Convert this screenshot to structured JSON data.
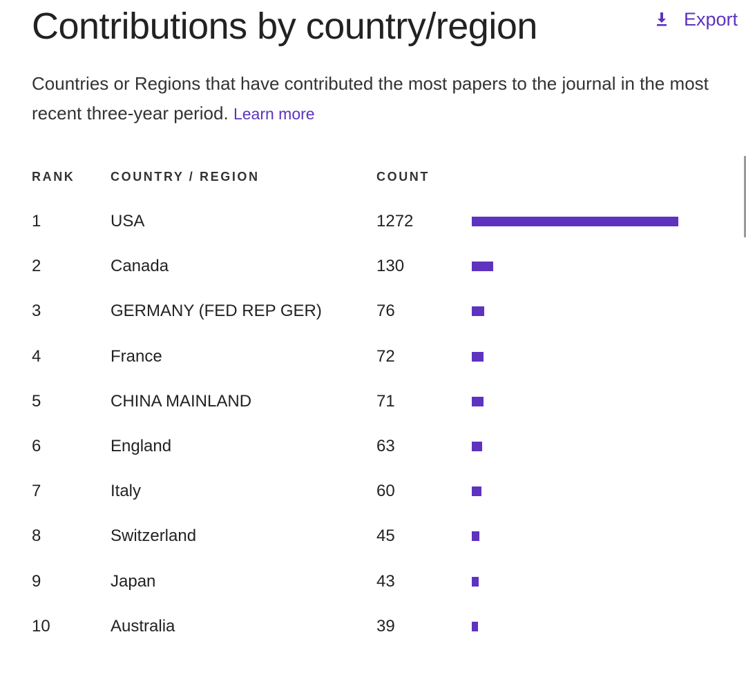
{
  "header": {
    "title": "Contributions by country/region",
    "export_label": "Export",
    "export_icon": "download-icon"
  },
  "description": {
    "text": "Countries or Regions that have contributed the most papers to the journal in the most recent three-year period.",
    "link_label": "Learn more"
  },
  "table": {
    "columns": [
      "RANK",
      "COUNTRY / REGION",
      "COUNT"
    ],
    "rows": [
      {
        "rank": "1",
        "country": "USA",
        "count": "1272"
      },
      {
        "rank": "2",
        "country": "Canada",
        "count": "130"
      },
      {
        "rank": "3",
        "country": "GERMANY (FED REP GER)",
        "count": "76"
      },
      {
        "rank": "4",
        "country": "France",
        "count": "72"
      },
      {
        "rank": "5",
        "country": "CHINA MAINLAND",
        "count": "71"
      },
      {
        "rank": "6",
        "country": "England",
        "count": "63"
      },
      {
        "rank": "7",
        "country": "Italy",
        "count": "60"
      },
      {
        "rank": "8",
        "country": "Switzerland",
        "count": "45"
      },
      {
        "rank": "9",
        "country": "Japan",
        "count": "43"
      },
      {
        "rank": "10",
        "country": "Australia",
        "count": "39"
      }
    ]
  },
  "colors": {
    "accent": "#5e33bf",
    "text": "#222222"
  },
  "chart_data": {
    "type": "bar",
    "categories": [
      "USA",
      "Canada",
      "GERMANY (FED REP GER)",
      "France",
      "CHINA MAINLAND",
      "England",
      "Italy",
      "Switzerland",
      "Japan",
      "Australia"
    ],
    "values": [
      1272,
      130,
      76,
      72,
      71,
      63,
      60,
      45,
      43,
      39
    ]
  }
}
